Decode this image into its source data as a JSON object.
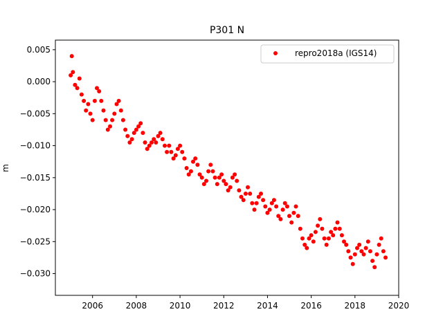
{
  "chart_data": {
    "type": "scatter",
    "title": "P301 N",
    "xlabel": "",
    "ylabel": "m",
    "xlim": [
      2004.3,
      2020.0
    ],
    "ylim": [
      -0.0334,
      0.0065
    ],
    "x_ticks": [
      {
        "value": 2006,
        "label": "2006"
      },
      {
        "value": 2008,
        "label": "2008"
      },
      {
        "value": 2010,
        "label": "2010"
      },
      {
        "value": 2012,
        "label": "2012"
      },
      {
        "value": 2014,
        "label": "2014"
      },
      {
        "value": 2016,
        "label": "2016"
      },
      {
        "value": 2018,
        "label": "2018"
      },
      {
        "value": 2020,
        "label": "2020"
      }
    ],
    "y_ticks": [
      {
        "value": 0.005,
        "label": "0.005"
      },
      {
        "value": 0.0,
        "label": "0.000"
      },
      {
        "value": -0.005,
        "label": "−0.005"
      },
      {
        "value": -0.01,
        "label": "−0.010"
      },
      {
        "value": -0.015,
        "label": "−0.015"
      },
      {
        "value": -0.02,
        "label": "−0.020"
      },
      {
        "value": -0.025,
        "label": "−0.025"
      },
      {
        "value": -0.03,
        "label": "−0.030"
      }
    ],
    "grid": false,
    "legend": {
      "placement": "top-right",
      "entries": [
        "repro2018a (IGS14)"
      ]
    },
    "series": [
      {
        "name": "repro2018a (IGS14)",
        "color": "#ff0000",
        "marker": "circle",
        "points": [
          [
            2005.0,
            0.001
          ],
          [
            2005.05,
            0.004
          ],
          [
            2005.1,
            0.0015
          ],
          [
            2005.2,
            -0.0005
          ],
          [
            2005.3,
            -0.001
          ],
          [
            2005.4,
            0.0005
          ],
          [
            2005.5,
            -0.002
          ],
          [
            2005.6,
            -0.003
          ],
          [
            2005.7,
            -0.0045
          ],
          [
            2005.8,
            -0.0035
          ],
          [
            2005.9,
            -0.005
          ],
          [
            2006.0,
            -0.006
          ],
          [
            2006.1,
            -0.003
          ],
          [
            2006.2,
            -0.001
          ],
          [
            2006.3,
            -0.0015
          ],
          [
            2006.4,
            -0.003
          ],
          [
            2006.5,
            -0.0045
          ],
          [
            2006.6,
            -0.006
          ],
          [
            2006.7,
            -0.0075
          ],
          [
            2006.8,
            -0.007
          ],
          [
            2006.9,
            -0.006
          ],
          [
            2007.0,
            -0.005
          ],
          [
            2007.1,
            -0.0035
          ],
          [
            2007.2,
            -0.003
          ],
          [
            2007.3,
            -0.0045
          ],
          [
            2007.4,
            -0.006
          ],
          [
            2007.5,
            -0.0075
          ],
          [
            2007.6,
            -0.0085
          ],
          [
            2007.7,
            -0.0095
          ],
          [
            2007.8,
            -0.009
          ],
          [
            2007.9,
            -0.008
          ],
          [
            2008.0,
            -0.0075
          ],
          [
            2008.1,
            -0.007
          ],
          [
            2008.2,
            -0.0065
          ],
          [
            2008.3,
            -0.008
          ],
          [
            2008.4,
            -0.0095
          ],
          [
            2008.5,
            -0.0105
          ],
          [
            2008.6,
            -0.01
          ],
          [
            2008.7,
            -0.0095
          ],
          [
            2008.8,
            -0.009
          ],
          [
            2008.9,
            -0.0095
          ],
          [
            2009.0,
            -0.0085
          ],
          [
            2009.1,
            -0.008
          ],
          [
            2009.2,
            -0.009
          ],
          [
            2009.3,
            -0.01
          ],
          [
            2009.4,
            -0.011
          ],
          [
            2009.5,
            -0.01
          ],
          [
            2009.6,
            -0.011
          ],
          [
            2009.7,
            -0.012
          ],
          [
            2009.8,
            -0.0115
          ],
          [
            2009.9,
            -0.0105
          ],
          [
            2010.0,
            -0.01
          ],
          [
            2010.1,
            -0.011
          ],
          [
            2010.2,
            -0.012
          ],
          [
            2010.3,
            -0.0135
          ],
          [
            2010.4,
            -0.0145
          ],
          [
            2010.5,
            -0.014
          ],
          [
            2010.6,
            -0.0125
          ],
          [
            2010.7,
            -0.012
          ],
          [
            2010.8,
            -0.013
          ],
          [
            2010.9,
            -0.0145
          ],
          [
            2011.0,
            -0.015
          ],
          [
            2011.1,
            -0.016
          ],
          [
            2011.2,
            -0.0155
          ],
          [
            2011.3,
            -0.014
          ],
          [
            2011.4,
            -0.013
          ],
          [
            2011.5,
            -0.014
          ],
          [
            2011.6,
            -0.015
          ],
          [
            2011.7,
            -0.016
          ],
          [
            2011.8,
            -0.015
          ],
          [
            2011.9,
            -0.0145
          ],
          [
            2012.0,
            -0.0155
          ],
          [
            2012.1,
            -0.016
          ],
          [
            2012.2,
            -0.017
          ],
          [
            2012.3,
            -0.0165
          ],
          [
            2012.4,
            -0.015
          ],
          [
            2012.5,
            -0.0145
          ],
          [
            2012.6,
            -0.0155
          ],
          [
            2012.7,
            -0.017
          ],
          [
            2012.8,
            -0.018
          ],
          [
            2012.9,
            -0.0185
          ],
          [
            2013.0,
            -0.0175
          ],
          [
            2013.1,
            -0.0165
          ],
          [
            2013.2,
            -0.0175
          ],
          [
            2013.3,
            -0.019
          ],
          [
            2013.4,
            -0.02
          ],
          [
            2013.5,
            -0.019
          ],
          [
            2013.6,
            -0.018
          ],
          [
            2013.7,
            -0.0175
          ],
          [
            2013.8,
            -0.0185
          ],
          [
            2013.9,
            -0.0195
          ],
          [
            2014.0,
            -0.0205
          ],
          [
            2014.1,
            -0.02
          ],
          [
            2014.2,
            -0.019
          ],
          [
            2014.3,
            -0.0185
          ],
          [
            2014.4,
            -0.0195
          ],
          [
            2014.5,
            -0.021
          ],
          [
            2014.6,
            -0.0215
          ],
          [
            2014.7,
            -0.02
          ],
          [
            2014.8,
            -0.019
          ],
          [
            2014.9,
            -0.0195
          ],
          [
            2015.0,
            -0.021
          ],
          [
            2015.1,
            -0.022
          ],
          [
            2015.2,
            -0.0205
          ],
          [
            2015.3,
            -0.0195
          ],
          [
            2015.4,
            -0.021
          ],
          [
            2015.5,
            -0.023
          ],
          [
            2015.6,
            -0.0245
          ],
          [
            2015.7,
            -0.0255
          ],
          [
            2015.8,
            -0.026
          ],
          [
            2015.9,
            -0.0245
          ],
          [
            2016.0,
            -0.024
          ],
          [
            2016.1,
            -0.025
          ],
          [
            2016.2,
            -0.0235
          ],
          [
            2016.3,
            -0.0225
          ],
          [
            2016.4,
            -0.0215
          ],
          [
            2016.5,
            -0.023
          ],
          [
            2016.6,
            -0.0245
          ],
          [
            2016.7,
            -0.0255
          ],
          [
            2016.8,
            -0.0245
          ],
          [
            2016.9,
            -0.0235
          ],
          [
            2017.0,
            -0.024
          ],
          [
            2017.1,
            -0.023
          ],
          [
            2017.2,
            -0.022
          ],
          [
            2017.3,
            -0.023
          ],
          [
            2017.4,
            -0.024
          ],
          [
            2017.5,
            -0.025
          ],
          [
            2017.6,
            -0.0255
          ],
          [
            2017.7,
            -0.0265
          ],
          [
            2017.8,
            -0.0275
          ],
          [
            2017.9,
            -0.0285
          ],
          [
            2018.0,
            -0.027
          ],
          [
            2018.1,
            -0.026
          ],
          [
            2018.2,
            -0.0255
          ],
          [
            2018.3,
            -0.0265
          ],
          [
            2018.4,
            -0.027
          ],
          [
            2018.5,
            -0.026
          ],
          [
            2018.6,
            -0.025
          ],
          [
            2018.7,
            -0.0265
          ],
          [
            2018.8,
            -0.028
          ],
          [
            2018.9,
            -0.029
          ],
          [
            2019.0,
            -0.027
          ],
          [
            2019.1,
            -0.0255
          ],
          [
            2019.2,
            -0.0245
          ],
          [
            2019.3,
            -0.0265
          ],
          [
            2019.4,
            -0.0275
          ]
        ]
      }
    ]
  }
}
